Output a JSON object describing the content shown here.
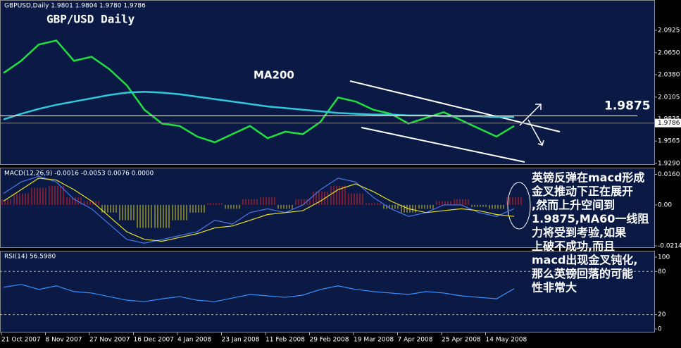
{
  "chart_data": [
    {
      "type": "line",
      "header": "GBPUSD,Daily  1.9801 1.9804 1.9780 1.9786",
      "title": "GBP/USD Daily",
      "annotations": [
        "MA200"
      ],
      "resistance": 1.9875,
      "last_price": 1.9786,
      "ylim": [
        1.9273,
        2.1297
      ],
      "yticks": [
        2.0925,
        {
          "value": 2.065,
          "label": "2.0650"
        },
        {
          "value": 2.038,
          "label": "2.0380"
        },
        2.0105,
        1.9835,
        1.9565,
        {
          "value": 1.929,
          "label": "1.9290"
        }
      ],
      "series": [
        {
          "name": "GBPUSD",
          "color": "#20e040",
          "values": [
            2.04,
            2.055,
            2.075,
            2.08,
            2.055,
            2.06,
            2.045,
            2.025,
            1.995,
            1.978,
            1.975,
            1.962,
            1.955,
            1.965,
            1.975,
            1.96,
            1.968,
            1.965,
            1.98,
            2.01,
            2.005,
            1.995,
            1.99,
            1.978,
            1.985,
            1.992,
            1.982,
            1.972,
            1.962,
            1.975
          ]
        },
        {
          "name": "MA200",
          "color": "#30c8dc",
          "values": [
            1.983,
            1.99,
            1.996,
            2.001,
            2.005,
            2.009,
            2.013,
            2.016,
            2.017,
            2.016,
            2.014,
            2.011,
            2.008,
            2.005,
            2.002,
            1.999,
            1.997,
            1.995,
            1.993,
            1.991,
            1.99,
            1.989,
            1.989,
            1.988,
            1.988,
            1.987,
            1.987,
            1.987,
            1.986,
            1.986
          ]
        }
      ]
    },
    {
      "type": "macd",
      "header": "MACD(12,26,9) -0.0016 -0.0053 0.0076 0.0000",
      "ylim": [
        -0.0225,
        0.0195
      ],
      "yticks": [
        {
          "value": 0.016,
          "label": "0.0160"
        },
        {
          "value": 0,
          "label": "0.00"
        },
        -0.0214
      ],
      "histogram": [
        0.003,
        0.006,
        0.009,
        0.01,
        0.004,
        0.002,
        -0.004,
        -0.008,
        -0.012,
        -0.012,
        -0.008,
        -0.004,
        0.001,
        -0.002,
        0.003,
        0.004,
        -0.002,
        0.003,
        0.007,
        0.01,
        0.006,
        0.001,
        -0.002,
        -0.004,
        -0.002,
        0.002,
        0.003,
        -0.001,
        -0.002,
        0.004
      ],
      "series": [
        {
          "name": "MACD",
          "color": "#4a78e8",
          "values": [
            0.006,
            0.012,
            0.015,
            0.012,
            0.003,
            -0.002,
            -0.01,
            -0.018,
            -0.02,
            -0.018,
            -0.016,
            -0.014,
            -0.008,
            -0.01,
            -0.004,
            -0.002,
            -0.004,
            0.0,
            0.008,
            0.014,
            0.012,
            0.004,
            -0.002,
            -0.006,
            -0.004,
            0.0,
            0.0,
            -0.004,
            -0.006,
            -0.002
          ]
        },
        {
          "name": "Signal",
          "color": "#e8e020",
          "values": [
            0.002,
            0.008,
            0.014,
            0.013,
            0.008,
            0.002,
            -0.006,
            -0.014,
            -0.018,
            -0.019,
            -0.017,
            -0.015,
            -0.012,
            -0.011,
            -0.008,
            -0.005,
            -0.004,
            -0.003,
            0.002,
            0.008,
            0.011,
            0.007,
            0.002,
            -0.002,
            -0.004,
            -0.003,
            -0.002,
            -0.003,
            -0.005,
            -0.006
          ]
        }
      ]
    },
    {
      "type": "rsi",
      "header": "RSI(14) 56.5980",
      "ylim": [
        -4.9,
        108.7
      ],
      "yticks": [
        100,
        80,
        20,
        0
      ],
      "levels": [
        80,
        20
      ],
      "series": [
        {
          "name": "RSI",
          "color": "#3a90ff",
          "values": [
            58,
            62,
            55,
            60,
            52,
            50,
            45,
            40,
            38,
            42,
            45,
            40,
            38,
            43,
            48,
            46,
            44,
            47,
            55,
            60,
            55,
            52,
            50,
            48,
            52,
            50,
            46,
            44,
            42,
            56
          ]
        }
      ],
      "x_labels": [
        "21 Oct 2007",
        "8 Nov 2007",
        "27 Nov 2007",
        "16 Dec 2007",
        "4 Jan 2008",
        "23 Jan 2008",
        "11 Feb 2008",
        "29 Feb 2008",
        "19 Mar 2008",
        "7 Apr 2008",
        "25 Apr 2008",
        "14 May 2008"
      ]
    }
  ],
  "commentary": [
    "英镑反弹在macd形成",
    "金叉推动下正在展开",
    ",然而上升空间到",
    "1.9875,MA60一线阻",
    "力将受到考验,如果",
    "上破不成功,而且",
    "macd出现金叉钝化,",
    "那么英镑回落的可能",
    "性非常大"
  ]
}
